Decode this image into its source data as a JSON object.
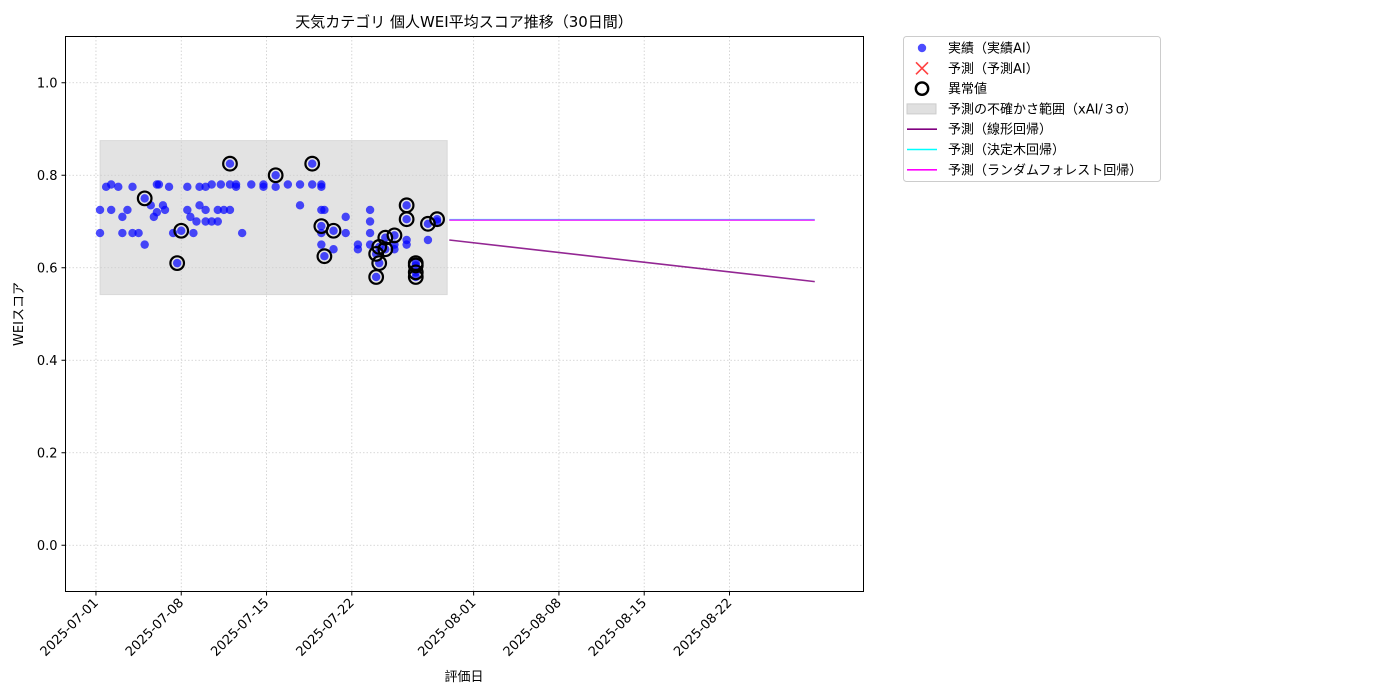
{
  "chart_data": {
    "type": "scatter",
    "title": "天気カテゴリ 個人WEI平均スコア推移（30日間）",
    "xlabel": "評価日",
    "ylabel": "WEIスコア",
    "xlim": [
      "2025-06-28T12:00",
      "2025-09-02T00:00"
    ],
    "ylim": [
      -0.1,
      1.1
    ],
    "xticks": [
      "2025-07-01",
      "2025-07-08",
      "2025-07-15",
      "2025-07-22",
      "2025-08-01",
      "2025-08-08",
      "2025-08-15",
      "2025-08-22"
    ],
    "yticks": [
      0.0,
      0.2,
      0.4,
      0.6,
      0.8,
      1.0
    ],
    "grid": true,
    "legend_placement": "outside upper-right",
    "colors": {
      "actual": "#0000ff",
      "predicted_ai": "#ff0000",
      "outlier_edge": "#000000",
      "uncertainty_band": "#cccccc",
      "linear": "#800080",
      "decision_tree": "#00ffff",
      "random_forest": "#ff00ff"
    },
    "legend": [
      {
        "key": "actual",
        "label": "実績（実績AI）",
        "marker": "dot"
      },
      {
        "key": "predicted_ai",
        "label": "予測（予測AI）",
        "marker": "x"
      },
      {
        "key": "outlier",
        "label": "異常値",
        "marker": "ring"
      },
      {
        "key": "band",
        "label": "予測の不確かさ範囲（xAI/３σ）",
        "marker": "patch"
      },
      {
        "key": "linear",
        "label": "予測（線形回帰）",
        "marker": "line"
      },
      {
        "key": "decision_tree",
        "label": "予測（決定木回帰）",
        "marker": "line"
      },
      {
        "key": "random_forest",
        "label": "予測（ランダムフォレスト回帰）",
        "marker": "line"
      }
    ],
    "uncertainty_band": {
      "x": [
        "2025-07-01T08:00",
        "2025-07-29T20:00"
      ],
      "y": [
        0.542,
        0.875
      ]
    },
    "series": [
      {
        "name": "実績（実績AI）",
        "kind": "scatter",
        "points": [
          [
            "2025-07-01T08:00",
            0.725
          ],
          [
            "2025-07-01T08:00",
            0.675
          ],
          [
            "2025-07-01T20:00",
            0.775
          ],
          [
            "2025-07-02T06:00",
            0.78
          ],
          [
            "2025-07-02T06:00",
            0.725
          ],
          [
            "2025-07-02T20:00",
            0.775
          ],
          [
            "2025-07-03T04:00",
            0.71
          ],
          [
            "2025-07-03T04:00",
            0.675
          ],
          [
            "2025-07-03T14:00",
            0.725
          ],
          [
            "2025-07-04T00:00",
            0.775
          ],
          [
            "2025-07-04T00:00",
            0.675
          ],
          [
            "2025-07-04T12:00",
            0.675
          ],
          [
            "2025-07-05T00:00",
            0.75
          ],
          [
            "2025-07-05T00:00",
            0.65
          ],
          [
            "2025-07-05T12:00",
            0.735
          ],
          [
            "2025-07-05T18:00",
            0.71
          ],
          [
            "2025-07-06T00:00",
            0.78
          ],
          [
            "2025-07-06T00:00",
            0.72
          ],
          [
            "2025-07-06T04:00",
            0.78
          ],
          [
            "2025-07-06T12:00",
            0.735
          ],
          [
            "2025-07-06T16:00",
            0.725
          ],
          [
            "2025-07-07T00:00",
            0.775
          ],
          [
            "2025-07-07T08:00",
            0.675
          ],
          [
            "2025-07-07T16:00",
            0.61
          ],
          [
            "2025-07-08T00:00",
            0.68
          ],
          [
            "2025-07-08T12:00",
            0.775
          ],
          [
            "2025-07-08T12:00",
            0.725
          ],
          [
            "2025-07-08T18:00",
            0.71
          ],
          [
            "2025-07-09T00:00",
            0.675
          ],
          [
            "2025-07-09T06:00",
            0.7
          ],
          [
            "2025-07-09T12:00",
            0.775
          ],
          [
            "2025-07-09T12:00",
            0.735
          ],
          [
            "2025-07-10T00:00",
            0.775
          ],
          [
            "2025-07-10T00:00",
            0.725
          ],
          [
            "2025-07-10T00:00",
            0.7
          ],
          [
            "2025-07-10T12:00",
            0.78
          ],
          [
            "2025-07-10T12:00",
            0.7
          ],
          [
            "2025-07-11T00:00",
            0.725
          ],
          [
            "2025-07-11T00:00",
            0.7
          ],
          [
            "2025-07-11T06:00",
            0.78
          ],
          [
            "2025-07-11T12:00",
            0.725
          ],
          [
            "2025-07-12T00:00",
            0.78
          ],
          [
            "2025-07-12T00:00",
            0.725
          ],
          [
            "2025-07-12T00:00",
            0.825
          ],
          [
            "2025-07-12T12:00",
            0.78
          ],
          [
            "2025-07-12T12:00",
            0.775
          ],
          [
            "2025-07-13T00:00",
            0.675
          ],
          [
            "2025-07-13T18:00",
            0.78
          ],
          [
            "2025-07-14T18:00",
            0.775
          ],
          [
            "2025-07-14T18:00",
            0.78
          ],
          [
            "2025-07-15T18:00",
            0.8
          ],
          [
            "2025-07-15T18:00",
            0.775
          ],
          [
            "2025-07-16T18:00",
            0.78
          ],
          [
            "2025-07-17T18:00",
            0.78
          ],
          [
            "2025-07-17T18:00",
            0.735
          ],
          [
            "2025-07-18T18:00",
            0.825
          ],
          [
            "2025-07-18T18:00",
            0.78
          ],
          [
            "2025-07-19T12:00",
            0.775
          ],
          [
            "2025-07-19T12:00",
            0.78
          ],
          [
            "2025-07-19T12:00",
            0.725
          ],
          [
            "2025-07-19T12:00",
            0.69
          ],
          [
            "2025-07-19T12:00",
            0.675
          ],
          [
            "2025-07-19T12:00",
            0.65
          ],
          [
            "2025-07-19T18:00",
            0.725
          ],
          [
            "2025-07-19T18:00",
            0.625
          ],
          [
            "2025-07-20T12:00",
            0.68
          ],
          [
            "2025-07-20T12:00",
            0.64
          ],
          [
            "2025-07-21T12:00",
            0.71
          ],
          [
            "2025-07-21T12:00",
            0.675
          ],
          [
            "2025-07-22T12:00",
            0.65
          ],
          [
            "2025-07-22T12:00",
            0.64
          ],
          [
            "2025-07-23T12:00",
            0.725
          ],
          [
            "2025-07-23T12:00",
            0.7
          ],
          [
            "2025-07-23T12:00",
            0.675
          ],
          [
            "2025-07-23T12:00",
            0.65
          ],
          [
            "2025-07-24T00:00",
            0.63
          ],
          [
            "2025-07-24T00:00",
            0.58
          ],
          [
            "2025-07-24T06:00",
            0.645
          ],
          [
            "2025-07-24T06:00",
            0.61
          ],
          [
            "2025-07-24T18:00",
            0.665
          ],
          [
            "2025-07-24T18:00",
            0.64
          ],
          [
            "2025-07-25T12:00",
            0.67
          ],
          [
            "2025-07-25T12:00",
            0.65
          ],
          [
            "2025-07-25T12:00",
            0.64
          ],
          [
            "2025-07-26T12:00",
            0.735
          ],
          [
            "2025-07-26T12:00",
            0.705
          ],
          [
            "2025-07-26T12:00",
            0.66
          ],
          [
            "2025-07-26T12:00",
            0.65
          ],
          [
            "2025-07-27T06:00",
            0.61
          ],
          [
            "2025-07-27T06:00",
            0.59
          ],
          [
            "2025-07-27T06:00",
            0.58
          ],
          [
            "2025-07-27T06:00",
            0.605
          ],
          [
            "2025-07-28T06:00",
            0.695
          ],
          [
            "2025-07-28T06:00",
            0.66
          ],
          [
            "2025-07-29T00:00",
            0.705
          ],
          [
            "2025-07-29T00:00",
            0.7
          ]
        ]
      },
      {
        "name": "異常値",
        "kind": "outlier",
        "points": [
          [
            "2025-07-05T00:00",
            0.75
          ],
          [
            "2025-07-07T16:00",
            0.61
          ],
          [
            "2025-07-08T00:00",
            0.68
          ],
          [
            "2025-07-12T00:00",
            0.825
          ],
          [
            "2025-07-15T18:00",
            0.8
          ],
          [
            "2025-07-18T18:00",
            0.825
          ],
          [
            "2025-07-19T12:00",
            0.69
          ],
          [
            "2025-07-19T18:00",
            0.625
          ],
          [
            "2025-07-20T12:00",
            0.68
          ],
          [
            "2025-07-24T00:00",
            0.63
          ],
          [
            "2025-07-24T00:00",
            0.58
          ],
          [
            "2025-07-24T06:00",
            0.645
          ],
          [
            "2025-07-24T06:00",
            0.61
          ],
          [
            "2025-07-24T18:00",
            0.665
          ],
          [
            "2025-07-24T18:00",
            0.64
          ],
          [
            "2025-07-25T12:00",
            0.67
          ],
          [
            "2025-07-26T12:00",
            0.735
          ],
          [
            "2025-07-26T12:00",
            0.705
          ],
          [
            "2025-07-27T06:00",
            0.61
          ],
          [
            "2025-07-27T06:00",
            0.59
          ],
          [
            "2025-07-27T06:00",
            0.58
          ],
          [
            "2025-07-27T06:00",
            0.605
          ],
          [
            "2025-07-28T06:00",
            0.695
          ],
          [
            "2025-07-29T00:00",
            0.705
          ]
        ]
      },
      {
        "name": "予測（線形回帰）",
        "kind": "line",
        "colorKey": "linear",
        "points": [
          [
            "2025-07-30T00:00",
            0.66
          ],
          [
            "2025-08-29T00:00",
            0.57
          ]
        ]
      },
      {
        "name": "予測（決定木回帰）",
        "kind": "line",
        "colorKey": "decision_tree",
        "points": [
          [
            "2025-07-30T00:00",
            0.704
          ],
          [
            "2025-08-29T00:00",
            0.704
          ]
        ]
      },
      {
        "name": "予測（ランダムフォレスト回帰）",
        "kind": "line",
        "colorKey": "random_forest",
        "points": [
          [
            "2025-07-30T00:00",
            0.703
          ],
          [
            "2025-08-29T00:00",
            0.703
          ]
        ]
      }
    ]
  }
}
